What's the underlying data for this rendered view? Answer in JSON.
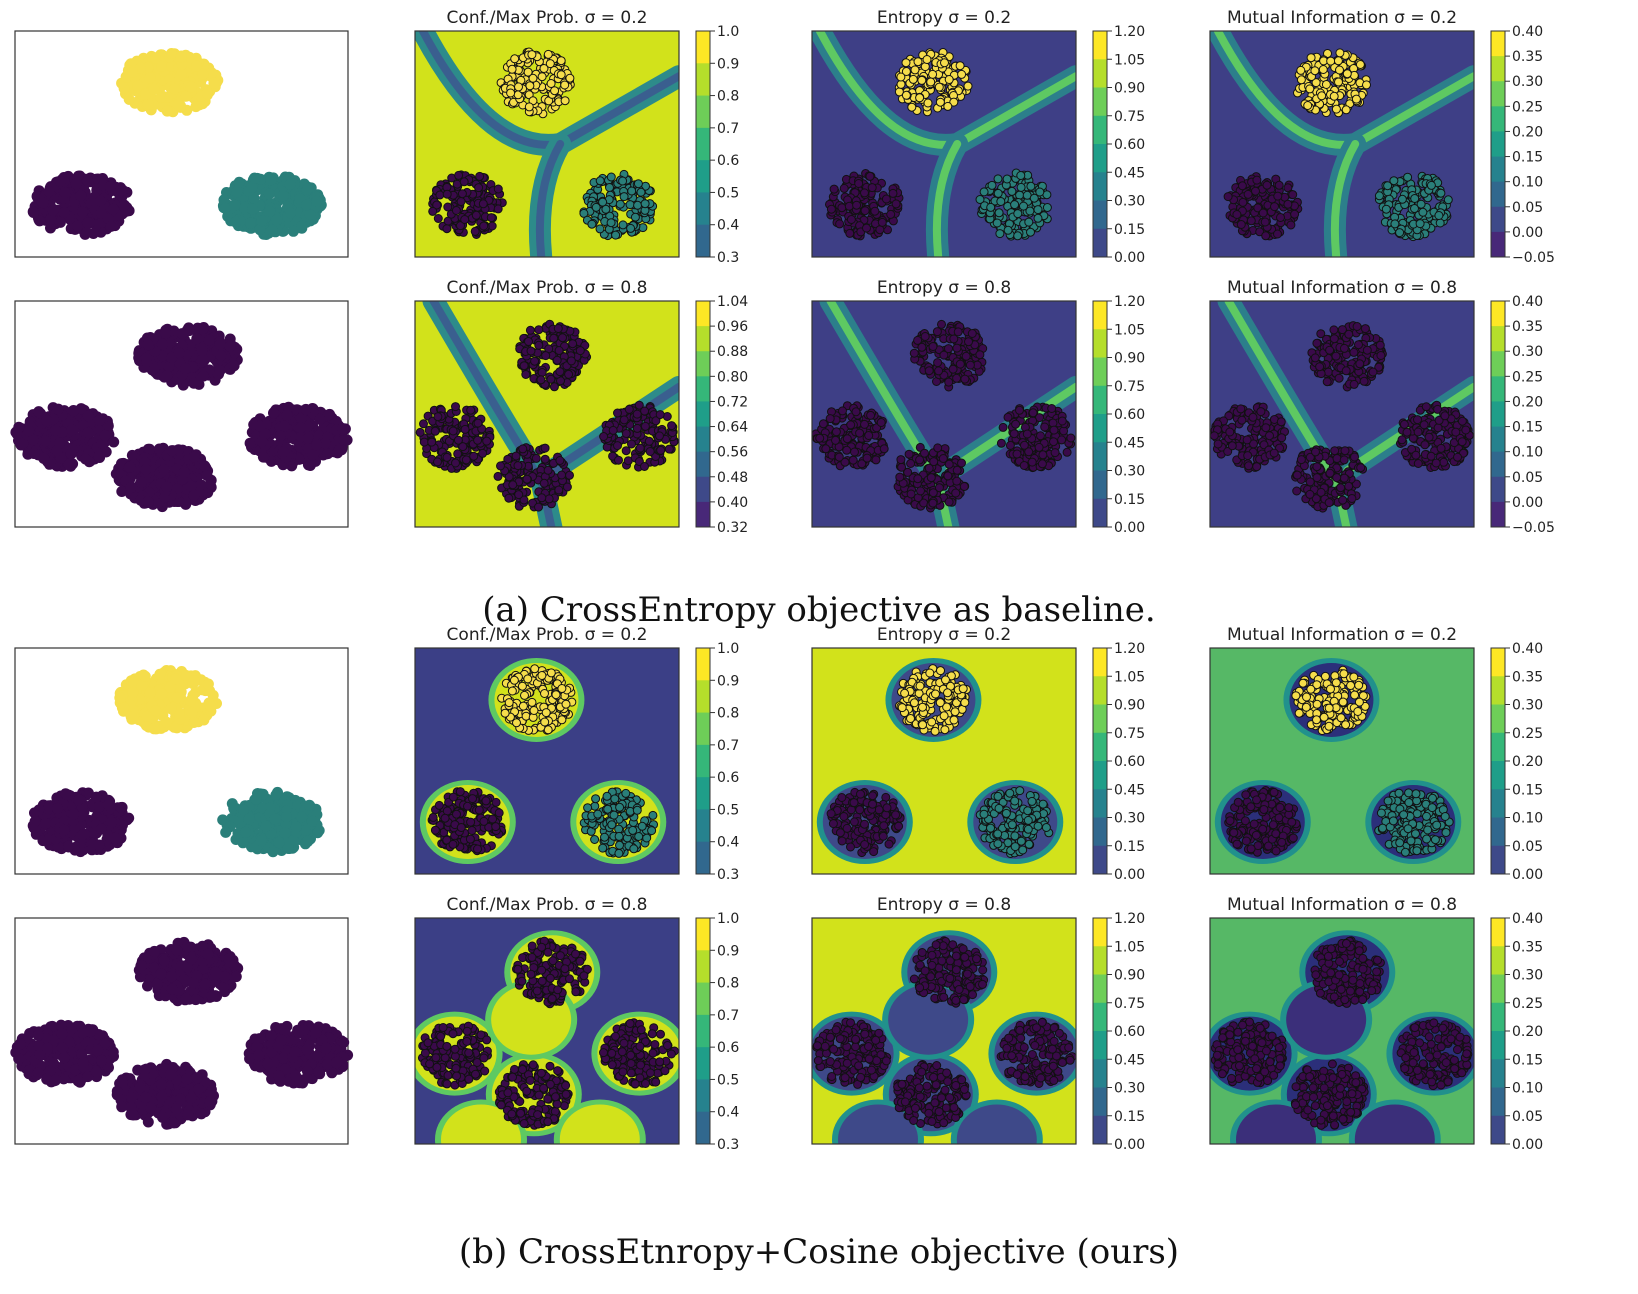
{
  "captions": {
    "a": "(a) CrossEntropy objective as baseline.",
    "b": "(b) CrossEtnropy+Cosine objective (ours)"
  },
  "colors": {
    "dark": "#440154",
    "mid_dark": "#3b528b",
    "mid": "#21918c",
    "mid_light": "#5ec962",
    "bright": "#d2e21b",
    "yellow": "#fde725",
    "teal_points": "#2a7f7a"
  },
  "colorbars": {
    "conf_s02": [
      "1.0",
      "0.9",
      "0.8",
      "0.7",
      "0.6",
      "0.5",
      "0.4",
      "0.3"
    ],
    "conf_s08_a": [
      "1.04",
      "0.96",
      "0.88",
      "0.80",
      "0.72",
      "0.64",
      "0.56",
      "0.48",
      "0.40",
      "0.32"
    ],
    "entropy": [
      "1.20",
      "1.05",
      "0.90",
      "0.75",
      "0.60",
      "0.45",
      "0.30",
      "0.15",
      "0.00"
    ],
    "mi_a": [
      "0.40",
      "0.35",
      "0.30",
      "0.25",
      "0.20",
      "0.15",
      "0.10",
      "0.05",
      "0.00",
      "−0.05"
    ],
    "mi_b": [
      "0.40",
      "0.35",
      "0.30",
      "0.25",
      "0.20",
      "0.15",
      "0.10",
      "0.05",
      "0.00"
    ]
  },
  "chart_data": [
    {
      "type": "scatter",
      "panel": "a-row1-data",
      "title": "",
      "clusters": [
        {
          "x": 0.45,
          "y": 0.83,
          "class": "yellow"
        },
        {
          "x": 0.17,
          "y": 0.2,
          "class": "purple"
        },
        {
          "x": 0.81,
          "y": 0.24,
          "class": "teal"
        }
      ]
    },
    {
      "type": "heatmap",
      "panel": "a-row1-conf",
      "title": "Conf./Max Prob. σ = 0.2",
      "colorbar_range": [
        0.3,
        1.0
      ]
    },
    {
      "type": "heatmap",
      "panel": "a-row1-entropy",
      "title": "Entropy σ = 0.2",
      "colorbar_range": [
        0.0,
        1.2
      ]
    },
    {
      "type": "heatmap",
      "panel": "a-row1-mi",
      "title": "Mutual Information σ = 0.2",
      "colorbar_range": [
        -0.05,
        0.4
      ]
    },
    {
      "type": "scatter",
      "panel": "a-row2-data",
      "title": "",
      "clusters": [
        {
          "x": 0.5,
          "y": 0.8,
          "class": "purple"
        },
        {
          "x": 0.13,
          "y": 0.43,
          "class": "purple"
        },
        {
          "x": 0.45,
          "y": 0.22,
          "class": "purple"
        },
        {
          "x": 0.85,
          "y": 0.43,
          "class": "purple"
        }
      ]
    },
    {
      "type": "heatmap",
      "panel": "a-row2-conf",
      "title": "Conf./Max Prob. σ = 0.8",
      "colorbar_range": [
        0.32,
        1.04
      ]
    },
    {
      "type": "heatmap",
      "panel": "a-row2-entropy",
      "title": "Entropy σ = 0.8",
      "colorbar_range": [
        0.0,
        1.2
      ]
    },
    {
      "type": "heatmap",
      "panel": "a-row2-mi",
      "title": "Mutual Information σ = 0.8",
      "colorbar_range": [
        -0.05,
        0.4
      ]
    },
    {
      "type": "scatter",
      "panel": "b-row1-data",
      "title": "",
      "clusters": [
        {
          "x": 0.45,
          "y": 0.83,
          "class": "yellow"
        },
        {
          "x": 0.17,
          "y": 0.2,
          "class": "purple"
        },
        {
          "x": 0.81,
          "y": 0.24,
          "class": "teal"
        }
      ]
    },
    {
      "type": "heatmap",
      "panel": "b-row1-conf",
      "title": "Conf./Max Prob. σ = 0.2",
      "colorbar_range": [
        0.3,
        1.0
      ]
    },
    {
      "type": "heatmap",
      "panel": "b-row1-entropy",
      "title": "Entropy σ = 0.2",
      "colorbar_range": [
        0.0,
        1.2
      ]
    },
    {
      "type": "heatmap",
      "panel": "b-row1-mi",
      "title": "Mutual Information σ = 0.2",
      "colorbar_range": [
        0.0,
        0.4
      ]
    },
    {
      "type": "scatter",
      "panel": "b-row2-data",
      "title": "",
      "clusters": [
        {
          "x": 0.5,
          "y": 0.8,
          "class": "purple"
        },
        {
          "x": 0.13,
          "y": 0.43,
          "class": "purple"
        },
        {
          "x": 0.45,
          "y": 0.22,
          "class": "purple"
        },
        {
          "x": 0.85,
          "y": 0.43,
          "class": "purple"
        }
      ]
    },
    {
      "type": "heatmap",
      "panel": "b-row2-conf",
      "title": "Conf./Max Prob. σ = 0.8",
      "colorbar_range": [
        0.3,
        1.0
      ]
    },
    {
      "type": "heatmap",
      "panel": "b-row2-entropy",
      "title": "Entropy σ = 0.8",
      "colorbar_range": [
        0.0,
        1.2
      ]
    },
    {
      "type": "heatmap",
      "panel": "b-row2-mi",
      "title": "Mutual Information σ = 0.8",
      "colorbar_range": [
        0.0,
        0.4
      ]
    }
  ]
}
